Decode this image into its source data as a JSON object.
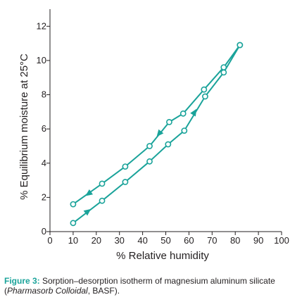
{
  "colors": {
    "series": "#1aa39a",
    "axis": "#231f20",
    "caption_label": "#1aa39a"
  },
  "chart_data": {
    "type": "line",
    "title": "",
    "xlabel": "% Relative humidity",
    "ylabel": "% Equilibrium moisture at 25°C",
    "xlim": [
      0,
      100
    ],
    "ylim": [
      0,
      13
    ],
    "xticks": [
      0,
      10,
      20,
      30,
      40,
      50,
      60,
      70,
      80,
      90,
      100
    ],
    "yticks": [
      0,
      2,
      4,
      6,
      8,
      10,
      12
    ],
    "grid": false,
    "legend": "none",
    "marker": "open-circle",
    "series": [
      {
        "direction": "sorption",
        "x": [
          10,
          22.5,
          32.5,
          43,
          51,
          58,
          67,
          75,
          82
        ],
        "y": [
          0.5,
          1.8,
          2.9,
          4.1,
          5.1,
          5.9,
          7.9,
          9.3,
          10.9
        ],
        "arrows": [
          {
            "x": 16.5,
            "y": 1.2
          },
          {
            "x": 62.5,
            "y": 7.0
          }
        ]
      },
      {
        "direction": "desorption",
        "x": [
          10,
          22.5,
          32.5,
          43,
          51.5,
          57.5,
          66.5,
          75,
          82
        ],
        "y": [
          1.6,
          2.8,
          3.8,
          5.0,
          6.4,
          6.9,
          8.3,
          9.6,
          10.9
        ],
        "arrows": [
          {
            "x": 16.5,
            "y": 2.2
          },
          {
            "x": 47,
            "y": 5.7
          }
        ]
      }
    ]
  },
  "caption": {
    "label": "Figure 3:",
    "text_line1": " Sorption–desorption isotherm of magnesium aluminum silicate",
    "text_open": "(",
    "product_italic": "Pharmasorb Colloidal",
    "text_close": ", BASF)."
  }
}
